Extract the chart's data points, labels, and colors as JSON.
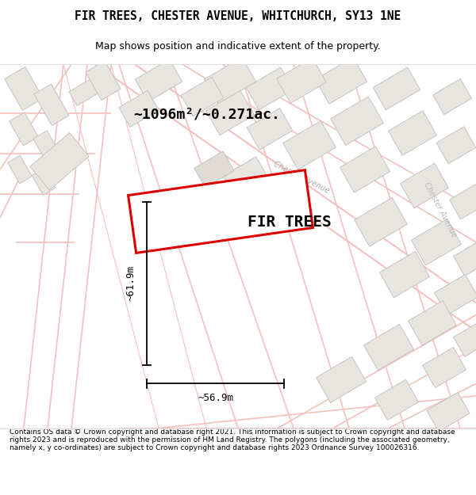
{
  "title_line1": "FIR TREES, CHESTER AVENUE, WHITCHURCH, SY13 1NE",
  "title_line2": "Map shows position and indicative extent of the property.",
  "area_label": "~1096m²/~0.271ac.",
  "property_label": "FIR TREES",
  "width_label": "~56.9m",
  "height_label": "~61.9m",
  "street_label": "Chester Avenue",
  "footer_text": "Contains OS data © Crown copyright and database right 2021. This information is subject to Crown copyright and database rights 2023 and is reproduced with the permission of HM Land Registry. The polygons (including the associated geometry, namely x, y co-ordinates) are subject to Crown copyright and database rights 2023 Ordnance Survey 100026316.",
  "bg_color": "#ffffff",
  "map_bg_color": "#ffffff",
  "plot_color": "#dd0000",
  "plot_fill": "#ffffff",
  "road_color": "#f5c0c0",
  "road_lw": 1.2,
  "building_color": "#e8e4e0",
  "building_edge": "#c8c4c0",
  "title_fontsize": 10.5,
  "subtitle_fontsize": 9,
  "area_fontsize": 13,
  "prop_fontsize": 14,
  "dim_fontsize": 9,
  "street_fontsize": 7,
  "footer_fontsize": 6.5,
  "figsize": [
    6.0,
    6.25
  ],
  "dpi": 100
}
